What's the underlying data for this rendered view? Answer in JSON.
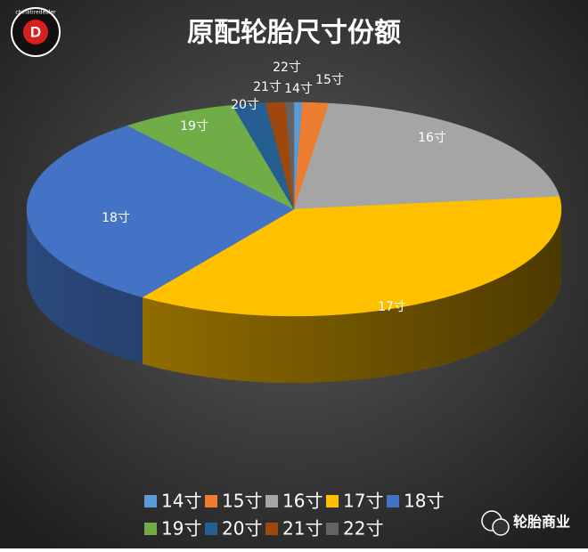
{
  "chart_data": {
    "type": "pie3d",
    "title": "原配轮胎尺寸份额",
    "categories": [
      "14寸",
      "15寸",
      "16寸",
      "17寸",
      "18寸",
      "19寸",
      "20寸",
      "21寸",
      "22寸"
    ],
    "values": [
      0.5,
      1.6,
      21,
      36.5,
      29.7,
      7,
      2,
      1.2,
      0.5
    ],
    "colors": [
      "#5b9bd5",
      "#ed7d31",
      "#a5a5a5",
      "#ffc000",
      "#4472c4",
      "#70ad47",
      "#255e91",
      "#9e480e",
      "#636363"
    ],
    "logo": "chinatiredealer",
    "watermark": "轮胎商业"
  }
}
